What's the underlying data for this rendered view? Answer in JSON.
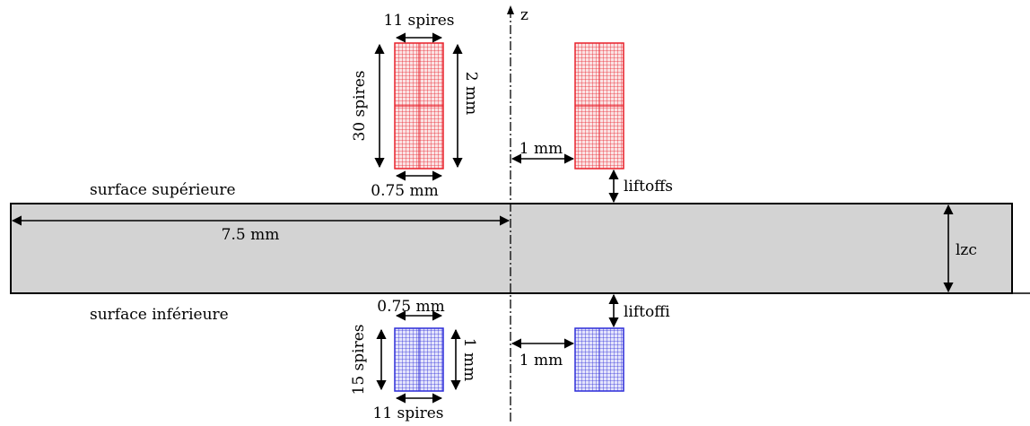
{
  "colors": {
    "top_coil": "#e8202a",
    "bottom_coil": "#2c2cd8",
    "plate_fill": "#d3d3d3",
    "stroke": "#000000",
    "background": "#ffffff"
  },
  "axis": {
    "label": "z"
  },
  "labels": {
    "top_turns_horizontal": "11 spires",
    "top_turns_vertical": "30 spires",
    "top_coil_height": "2 mm",
    "top_coil_width": "0.75 mm",
    "top_coil_radius": "1 mm",
    "liftoff_top": "liftoffs",
    "surface_top": "surface supérieure",
    "plate_half_width": "7.5 mm",
    "plate_thickness": "lzc",
    "surface_bottom": "surface inférieure",
    "liftoff_bottom": "liftoffi",
    "bottom_coil_width": "0.75 mm",
    "bottom_turns_vertical": "15 spires",
    "bottom_coil_height": "1 mm",
    "bottom_coil_radius": "1 mm",
    "bottom_turns_horizontal": "11 spires"
  }
}
